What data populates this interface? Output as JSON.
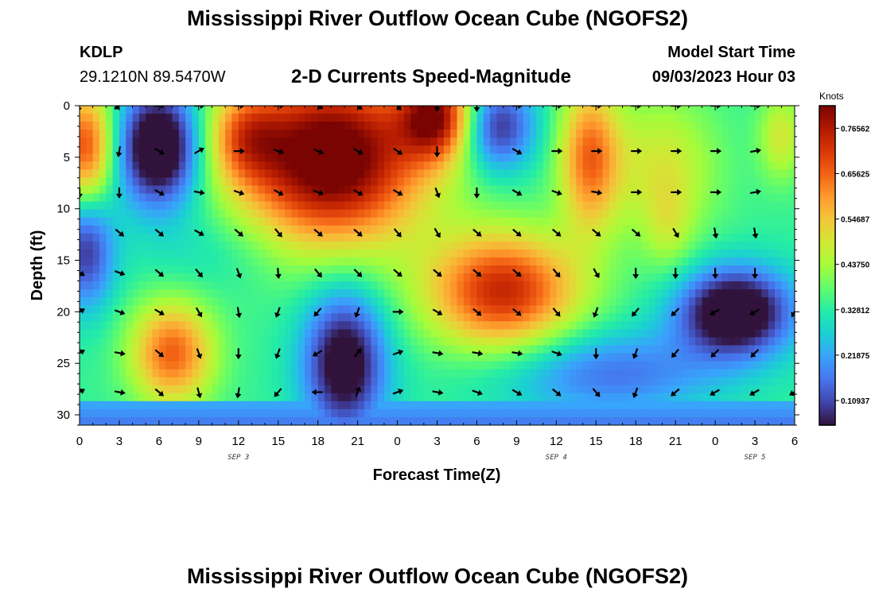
{
  "header": {
    "title": "Mississippi River Outflow Ocean Cube (NGOFS2)",
    "station_id": "KDLP",
    "station_coords": "29.1210N  89.5470W",
    "subtitle": "2-D Currents Speed-Magnitude",
    "model_start_label": "Model Start Time",
    "model_start_value": "09/03/2023 Hour 03"
  },
  "second_panel": {
    "title": "Mississippi River Outflow Ocean Cube (NGOFS2)"
  },
  "chart_data": {
    "type": "heatmap",
    "title": "2-D Currents Speed-Magnitude",
    "xlabel": "Forecast Time(Z)",
    "ylabel": "Depth (ft)",
    "x_tick_labels": [
      "0",
      "3",
      "6",
      "9",
      "12",
      "15",
      "18",
      "21",
      "0",
      "3",
      "6",
      "9",
      "12",
      "15",
      "18",
      "21",
      "0",
      "3",
      "6"
    ],
    "x_date_labels": [
      {
        "label": "SEP 3",
        "hour_index": 12
      },
      {
        "label": "SEP 4",
        "hour_index": 36
      },
      {
        "label": "SEP 5",
        "hour_index": 51
      }
    ],
    "x_range_hours": [
      0,
      54
    ],
    "y_ticks": [
      0,
      5,
      10,
      15,
      20,
      25,
      30
    ],
    "y_range": [
      0,
      31
    ],
    "y_inverted": true,
    "colorbar": {
      "unit": "Knots",
      "tick_values": [
        0.10937,
        0.21875,
        0.32812,
        0.4375,
        0.54687,
        0.65625,
        0.76562
      ],
      "tick_labels": [
        "0.10937",
        "0.21875",
        "0.32812",
        "0.43750",
        "0.54687",
        "0.65625",
        "0.76562"
      ],
      "range": [
        0.05,
        0.82
      ],
      "colors": [
        "#30123b",
        "#4145ab",
        "#4675ed",
        "#39a2fc",
        "#1bcfd4",
        "#24eca6",
        "#61fc6c",
        "#a4fc3b",
        "#d1e834",
        "#f3c63a",
        "#fe9b2d",
        "#f36315",
        "#d93806",
        "#b11901",
        "#7a0402"
      ]
    },
    "speed_centers": [
      {
        "t": 0.5,
        "d": 4,
        "v": 0.35,
        "sx": 1.5,
        "sd": 4
      },
      {
        "t": 6,
        "d": 4,
        "v": -0.42,
        "sx": 2.2,
        "sd": 4
      },
      {
        "t": 19,
        "d": 5,
        "v": 0.55,
        "sx": 5,
        "sd": 6
      },
      {
        "t": 12.5,
        "d": 3,
        "v": 0.2,
        "sx": 2,
        "sd": 3
      },
      {
        "t": 7,
        "d": 24,
        "v": 0.32,
        "sx": 2.2,
        "sd": 3.5
      },
      {
        "t": 20,
        "d": 25,
        "v": -0.35,
        "sx": 2.2,
        "sd": 5
      },
      {
        "t": 27,
        "d": 1,
        "v": 0.4,
        "sx": 2,
        "sd": 3
      },
      {
        "t": 31.5,
        "d": 2,
        "v": -0.28,
        "sx": 2,
        "sd": 3
      },
      {
        "t": 32,
        "d": 18,
        "v": 0.4,
        "sx": 4,
        "sd": 4
      },
      {
        "t": 38.5,
        "d": 5,
        "v": 0.3,
        "sx": 1.6,
        "sd": 5
      },
      {
        "t": 44,
        "d": 6,
        "v": 0.15,
        "sx": 3,
        "sd": 5
      },
      {
        "t": 44.5,
        "d": 12,
        "v": 0.08,
        "sx": 1.3,
        "sd": 3
      },
      {
        "t": 49.5,
        "d": 20,
        "v": -0.4,
        "sx": 3,
        "sd": 3
      },
      {
        "t": 10,
        "d": 14,
        "v": -0.05,
        "sx": 4,
        "sd": 3
      },
      {
        "t": 0.5,
        "d": 14,
        "v": -0.25,
        "sx": 1.5,
        "sd": 4
      },
      {
        "t": 53,
        "d": 3,
        "v": 0.15,
        "sx": 1.2,
        "sd": 3
      },
      {
        "t": 40,
        "d": 26,
        "v": -0.18,
        "sx": 6,
        "sd": 3
      }
    ],
    "speed_base": 0.34,
    "vectors": [
      {
        "t": 0,
        "d": 0,
        "a": 200
      },
      {
        "t": 3,
        "d": 0,
        "a": 235
      },
      {
        "t": 6,
        "d": 0,
        "a": 90
      },
      {
        "t": 9,
        "d": 0,
        "a": 90
      },
      {
        "t": 12,
        "d": 0,
        "a": 90
      },
      {
        "t": 15,
        "d": 0,
        "a": 90
      },
      {
        "t": 18,
        "d": 0,
        "a": 120
      },
      {
        "t": 21,
        "d": 0,
        "a": 130
      },
      {
        "t": 24,
        "d": 0,
        "a": 140
      },
      {
        "t": 27,
        "d": 0,
        "a": 180
      },
      {
        "t": 30,
        "d": 0,
        "a": 180
      },
      {
        "t": 33,
        "d": 0,
        "a": 90
      },
      {
        "t": 36,
        "d": 0,
        "a": 90
      },
      {
        "t": 39,
        "d": 0,
        "a": 90
      },
      {
        "t": 42,
        "d": 0,
        "a": 90
      },
      {
        "t": 45,
        "d": 0,
        "a": 90
      },
      {
        "t": 48,
        "d": 0,
        "a": 90
      },
      {
        "t": 51,
        "d": 0,
        "a": 90
      },
      {
        "t": 3,
        "d": 4.4,
        "a": 190
      },
      {
        "t": 6,
        "d": 4.4,
        "a": 120
      },
      {
        "t": 9,
        "d": 4.4,
        "a": 60
      },
      {
        "t": 12,
        "d": 4.4,
        "a": 90
      },
      {
        "t": 15,
        "d": 4.4,
        "a": 110
      },
      {
        "t": 18,
        "d": 4.4,
        "a": 115
      },
      {
        "t": 21,
        "d": 4.4,
        "a": 120
      },
      {
        "t": 24,
        "d": 4.4,
        "a": 125
      },
      {
        "t": 27,
        "d": 4.4,
        "a": 180
      },
      {
        "t": 33,
        "d": 4.4,
        "a": 120
      },
      {
        "t": 36,
        "d": 4.4,
        "a": 90
      },
      {
        "t": 39,
        "d": 4.4,
        "a": 90
      },
      {
        "t": 42,
        "d": 4.4,
        "a": 90
      },
      {
        "t": 45,
        "d": 4.4,
        "a": 90
      },
      {
        "t": 48,
        "d": 4.4,
        "a": 90
      },
      {
        "t": 51,
        "d": 4.4,
        "a": 80
      },
      {
        "t": 0,
        "d": 8.4,
        "a": 180
      },
      {
        "t": 3,
        "d": 8.4,
        "a": 180
      },
      {
        "t": 6,
        "d": 8.4,
        "a": 120
      },
      {
        "t": 9,
        "d": 8.4,
        "a": 100
      },
      {
        "t": 12,
        "d": 8.4,
        "a": 110
      },
      {
        "t": 15,
        "d": 8.4,
        "a": 120
      },
      {
        "t": 18,
        "d": 8.4,
        "a": 110
      },
      {
        "t": 21,
        "d": 8.4,
        "a": 120
      },
      {
        "t": 24,
        "d": 8.4,
        "a": 120
      },
      {
        "t": 27,
        "d": 8.4,
        "a": 160
      },
      {
        "t": 30,
        "d": 8.4,
        "a": 180
      },
      {
        "t": 33,
        "d": 8.4,
        "a": 120
      },
      {
        "t": 36,
        "d": 8.4,
        "a": 110
      },
      {
        "t": 39,
        "d": 8.4,
        "a": 100
      },
      {
        "t": 42,
        "d": 8.4,
        "a": 90
      },
      {
        "t": 45,
        "d": 8.4,
        "a": 90
      },
      {
        "t": 48,
        "d": 8.4,
        "a": 90
      },
      {
        "t": 51,
        "d": 8.4,
        "a": 80
      },
      {
        "t": 3,
        "d": 12.3,
        "a": 130
      },
      {
        "t": 6,
        "d": 12.3,
        "a": 130
      },
      {
        "t": 9,
        "d": 12.3,
        "a": 120
      },
      {
        "t": 12,
        "d": 12.3,
        "a": 130
      },
      {
        "t": 15,
        "d": 12.3,
        "a": 140
      },
      {
        "t": 18,
        "d": 12.3,
        "a": 130
      },
      {
        "t": 21,
        "d": 12.3,
        "a": 130
      },
      {
        "t": 24,
        "d": 12.3,
        "a": 140
      },
      {
        "t": 27,
        "d": 12.3,
        "a": 150
      },
      {
        "t": 30,
        "d": 12.3,
        "a": 130
      },
      {
        "t": 33,
        "d": 12.3,
        "a": 130
      },
      {
        "t": 36,
        "d": 12.3,
        "a": 130
      },
      {
        "t": 39,
        "d": 12.3,
        "a": 130
      },
      {
        "t": 42,
        "d": 12.3,
        "a": 130
      },
      {
        "t": 45,
        "d": 12.3,
        "a": 150
      },
      {
        "t": 48,
        "d": 12.3,
        "a": 170
      },
      {
        "t": 51,
        "d": 12.3,
        "a": 170
      },
      {
        "t": 0,
        "d": 16.2,
        "a": 120
      },
      {
        "t": 3,
        "d": 16.2,
        "a": 110
      },
      {
        "t": 6,
        "d": 16.2,
        "a": 130
      },
      {
        "t": 9,
        "d": 16.2,
        "a": 140
      },
      {
        "t": 12,
        "d": 16.2,
        "a": 160
      },
      {
        "t": 15,
        "d": 16.2,
        "a": 175
      },
      {
        "t": 18,
        "d": 16.2,
        "a": 140
      },
      {
        "t": 21,
        "d": 16.2,
        "a": 135
      },
      {
        "t": 24,
        "d": 16.2,
        "a": 130
      },
      {
        "t": 27,
        "d": 16.2,
        "a": 130
      },
      {
        "t": 30,
        "d": 16.2,
        "a": 130
      },
      {
        "t": 33,
        "d": 16.2,
        "a": 130
      },
      {
        "t": 36,
        "d": 16.2,
        "a": 140
      },
      {
        "t": 39,
        "d": 16.2,
        "a": 150
      },
      {
        "t": 42,
        "d": 16.2,
        "a": 180
      },
      {
        "t": 45,
        "d": 16.2,
        "a": 180
      },
      {
        "t": 48,
        "d": 16.2,
        "a": 180
      },
      {
        "t": 51,
        "d": 16.2,
        "a": 180
      },
      {
        "t": 0,
        "d": 20,
        "a": 60
      },
      {
        "t": 3,
        "d": 20,
        "a": 110
      },
      {
        "t": 6,
        "d": 20,
        "a": 120
      },
      {
        "t": 9,
        "d": 20,
        "a": 150
      },
      {
        "t": 12,
        "d": 20,
        "a": 170
      },
      {
        "t": 15,
        "d": 20,
        "a": 200
      },
      {
        "t": 18,
        "d": 20,
        "a": 220
      },
      {
        "t": 21,
        "d": 20,
        "a": 200
      },
      {
        "t": 24,
        "d": 20,
        "a": 90
      },
      {
        "t": 27,
        "d": 20,
        "a": 120
      },
      {
        "t": 30,
        "d": 20,
        "a": 130
      },
      {
        "t": 33,
        "d": 20,
        "a": 130
      },
      {
        "t": 36,
        "d": 20,
        "a": 140
      },
      {
        "t": 39,
        "d": 20,
        "a": 200
      },
      {
        "t": 42,
        "d": 20,
        "a": 220
      },
      {
        "t": 45,
        "d": 20,
        "a": 225
      },
      {
        "t": 48,
        "d": 20,
        "a": 240
      },
      {
        "t": 51,
        "d": 20,
        "a": 240
      },
      {
        "t": 54,
        "d": 20,
        "a": 210
      },
      {
        "t": 0,
        "d": 24,
        "a": 60
      },
      {
        "t": 3,
        "d": 24,
        "a": 100
      },
      {
        "t": 6,
        "d": 24,
        "a": 130
      },
      {
        "t": 9,
        "d": 24,
        "a": 160
      },
      {
        "t": 12,
        "d": 24,
        "a": 180
      },
      {
        "t": 15,
        "d": 24,
        "a": 200
      },
      {
        "t": 18,
        "d": 24,
        "a": 240
      },
      {
        "t": 21,
        "d": 24,
        "a": 40
      },
      {
        "t": 24,
        "d": 24,
        "a": 70
      },
      {
        "t": 27,
        "d": 24,
        "a": 100
      },
      {
        "t": 30,
        "d": 24,
        "a": 100
      },
      {
        "t": 33,
        "d": 24,
        "a": 100
      },
      {
        "t": 36,
        "d": 24,
        "a": 110
      },
      {
        "t": 39,
        "d": 24,
        "a": 180
      },
      {
        "t": 42,
        "d": 24,
        "a": 200
      },
      {
        "t": 45,
        "d": 24,
        "a": 220
      },
      {
        "t": 48,
        "d": 24,
        "a": 225
      },
      {
        "t": 51,
        "d": 24,
        "a": 225
      },
      {
        "t": 0,
        "d": 27.8,
        "a": 60
      },
      {
        "t": 3,
        "d": 27.8,
        "a": 100
      },
      {
        "t": 6,
        "d": 27.8,
        "a": 130
      },
      {
        "t": 9,
        "d": 27.8,
        "a": 165
      },
      {
        "t": 12,
        "d": 27.8,
        "a": 190
      },
      {
        "t": 15,
        "d": 27.8,
        "a": 220
      },
      {
        "t": 18,
        "d": 27.8,
        "a": 270
      },
      {
        "t": 21,
        "d": 27.8,
        "a": 20
      },
      {
        "t": 24,
        "d": 27.8,
        "a": 70
      },
      {
        "t": 27,
        "d": 27.8,
        "a": 100
      },
      {
        "t": 30,
        "d": 27.8,
        "a": 110
      },
      {
        "t": 33,
        "d": 27.8,
        "a": 120
      },
      {
        "t": 36,
        "d": 27.8,
        "a": 130
      },
      {
        "t": 39,
        "d": 27.8,
        "a": 140
      },
      {
        "t": 42,
        "d": 27.8,
        "a": 200
      },
      {
        "t": 45,
        "d": 27.8,
        "a": 230
      },
      {
        "t": 48,
        "d": 27.8,
        "a": 240
      },
      {
        "t": 51,
        "d": 27.8,
        "a": 240
      },
      {
        "t": 54,
        "d": 27.8,
        "a": 240
      }
    ]
  }
}
